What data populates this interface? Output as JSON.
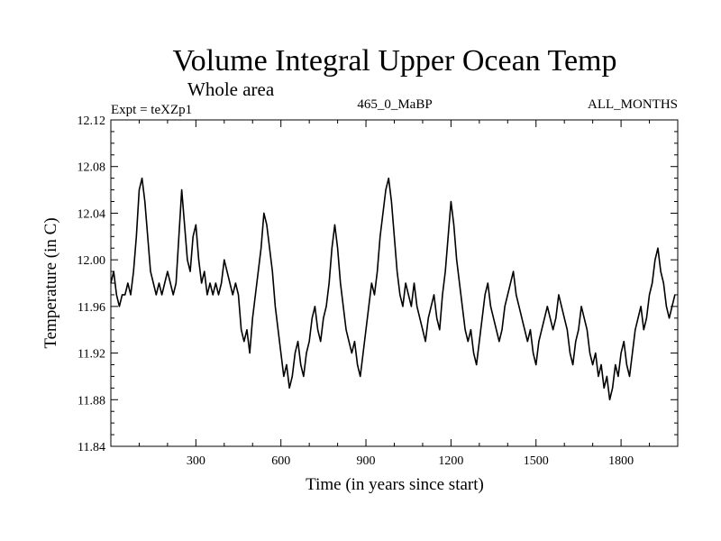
{
  "chart_data": {
    "type": "line",
    "title": "Volume Integral Upper Ocean Temp",
    "subtitle": "Whole area",
    "annotations": {
      "expt": "Expt = teXZp1",
      "period": "465_0_MaBP",
      "months": "ALL_MONTHS"
    },
    "xlabel": "Time (in years since start)",
    "ylabel": "Temperature (in C)",
    "xlim": [
      0,
      2000
    ],
    "ylim": [
      11.84,
      12.12
    ],
    "xticks": [
      300,
      600,
      900,
      1200,
      1500,
      1800
    ],
    "xtick_labels": [
      "300",
      "600",
      "900",
      "1200",
      "1500",
      "1800"
    ],
    "yticks": [
      11.84,
      11.88,
      11.92,
      11.96,
      12.0,
      12.04,
      12.08,
      12.12
    ],
    "ytick_labels": [
      "11.84",
      "11.88",
      "11.92",
      "11.96",
      "12.00",
      "12.04",
      "12.08",
      "12.12"
    ],
    "grid": false,
    "series": [
      {
        "name": "Volume Integral Upper Ocean Temp",
        "x_step": 10,
        "values": [
          11.98,
          11.99,
          11.97,
          11.96,
          11.97,
          11.97,
          11.98,
          11.97,
          11.99,
          12.02,
          12.06,
          12.07,
          12.05,
          12.02,
          11.99,
          11.98,
          11.97,
          11.98,
          11.97,
          11.98,
          11.99,
          11.98,
          11.97,
          11.98,
          12.02,
          12.06,
          12.03,
          12.0,
          11.99,
          12.02,
          12.03,
          12.0,
          11.98,
          11.99,
          11.97,
          11.98,
          11.97,
          11.98,
          11.97,
          11.98,
          12.0,
          11.99,
          11.98,
          11.97,
          11.98,
          11.97,
          11.94,
          11.93,
          11.94,
          11.92,
          11.95,
          11.97,
          11.99,
          12.01,
          12.04,
          12.03,
          12.01,
          11.99,
          11.96,
          11.94,
          11.92,
          11.9,
          11.91,
          11.89,
          11.9,
          11.92,
          11.93,
          11.91,
          11.9,
          11.92,
          11.93,
          11.95,
          11.96,
          11.94,
          11.93,
          11.95,
          11.96,
          11.98,
          12.01,
          12.03,
          12.01,
          11.98,
          11.96,
          11.94,
          11.93,
          11.92,
          11.93,
          11.91,
          11.9,
          11.92,
          11.94,
          11.96,
          11.98,
          11.97,
          11.99,
          12.02,
          12.04,
          12.06,
          12.07,
          12.05,
          12.02,
          11.99,
          11.97,
          11.96,
          11.98,
          11.97,
          11.96,
          11.98,
          11.96,
          11.95,
          11.94,
          11.93,
          11.95,
          11.96,
          11.97,
          11.95,
          11.94,
          11.97,
          11.99,
          12.02,
          12.05,
          12.03,
          12.0,
          11.98,
          11.96,
          11.94,
          11.93,
          11.94,
          11.92,
          11.91,
          11.93,
          11.95,
          11.97,
          11.98,
          11.96,
          11.95,
          11.94,
          11.93,
          11.94,
          11.96,
          11.97,
          11.98,
          11.99,
          11.97,
          11.96,
          11.95,
          11.94,
          11.93,
          11.94,
          11.92,
          11.91,
          11.93,
          11.94,
          11.95,
          11.96,
          11.95,
          11.94,
          11.95,
          11.97,
          11.96,
          11.95,
          11.94,
          11.92,
          11.91,
          11.93,
          11.94,
          11.96,
          11.95,
          11.94,
          11.92,
          11.91,
          11.92,
          11.9,
          11.91,
          11.89,
          11.9,
          11.88,
          11.89,
          11.91,
          11.9,
          11.92,
          11.93,
          11.91,
          11.9,
          11.92,
          11.94,
          11.95,
          11.96,
          11.94,
          11.95,
          11.97,
          11.98,
          12.0,
          12.01,
          11.99,
          11.98,
          11.96,
          11.95,
          11.96,
          11.97
        ]
      }
    ]
  }
}
